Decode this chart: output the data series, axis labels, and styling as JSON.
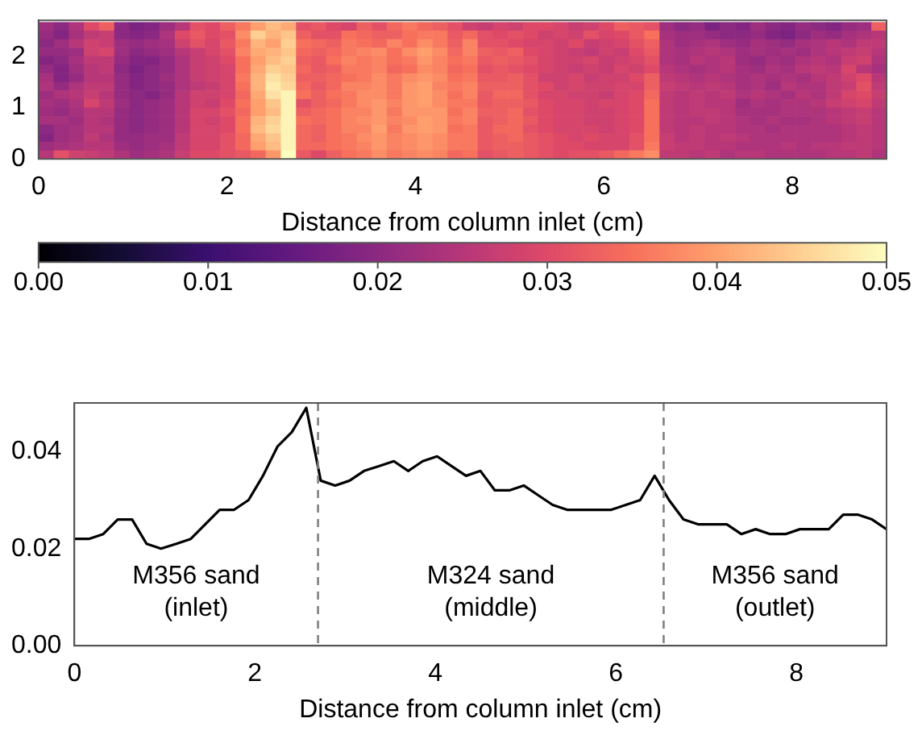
{
  "chart_data": [
    {
      "type": "heatmap",
      "xlabel": "Distance from column inlet (cm)",
      "x": [
        0.08,
        0.241,
        0.402,
        0.563,
        0.723,
        0.884,
        1.045,
        1.205,
        1.366,
        1.527,
        1.688,
        1.848,
        2.009,
        2.17,
        2.33,
        2.491,
        2.652,
        2.813,
        2.973,
        3.134,
        3.295,
        3.455,
        3.616,
        3.777,
        3.938,
        4.098,
        4.259,
        4.42,
        4.58,
        4.741,
        4.902,
        5.063,
        5.223,
        5.384,
        5.545,
        5.705,
        5.866,
        6.027,
        6.188,
        6.348,
        6.509,
        6.67,
        6.83,
        6.991,
        7.152,
        7.313,
        7.473,
        7.634,
        7.795,
        7.955,
        8.116,
        8.277,
        8.438,
        8.598,
        8.759,
        8.92
      ],
      "y": [
        2.583,
        2.417,
        2.25,
        2.083,
        1.917,
        1.75,
        1.583,
        1.417,
        1.25,
        1.083,
        0.917,
        0.75,
        0.583,
        0.417,
        0.25,
        0.083
      ],
      "cells": [
        [
          0.022,
          0.02,
          0.024,
          0.03,
          0.033,
          0.02,
          0.018,
          0.019,
          0.022,
          0.025,
          0.031,
          0.03,
          0.033,
          0.036,
          0.04,
          0.043,
          0.041,
          0.031,
          0.032,
          0.03,
          0.029,
          0.033,
          0.031,
          0.034,
          0.036,
          0.034,
          0.033,
          0.031,
          0.028,
          0.027,
          0.029,
          0.028,
          0.03,
          0.03,
          0.029,
          0.027,
          0.028,
          0.03,
          0.033,
          0.032,
          0.031,
          0.022,
          0.02,
          0.021,
          0.018,
          0.02,
          0.019,
          0.022,
          0.02,
          0.019,
          0.021,
          0.02,
          0.019,
          0.021,
          0.022,
          0.033
        ],
        [
          0.021,
          0.019,
          0.023,
          0.026,
          0.027,
          0.02,
          0.019,
          0.02,
          0.024,
          0.03,
          0.032,
          0.03,
          0.031,
          0.038,
          0.045,
          0.042,
          0.044,
          0.033,
          0.031,
          0.031,
          0.035,
          0.034,
          0.033,
          0.033,
          0.035,
          0.036,
          0.036,
          0.032,
          0.034,
          0.031,
          0.03,
          0.031,
          0.03,
          0.028,
          0.029,
          0.028,
          0.031,
          0.029,
          0.03,
          0.032,
          0.035,
          0.023,
          0.022,
          0.022,
          0.021,
          0.02,
          0.02,
          0.021,
          0.019,
          0.018,
          0.02,
          0.022,
          0.021,
          0.023,
          0.024,
          0.025
        ],
        [
          0.02,
          0.022,
          0.025,
          0.028,
          0.027,
          0.022,
          0.021,
          0.022,
          0.023,
          0.028,
          0.031,
          0.029,
          0.032,
          0.036,
          0.042,
          0.04,
          0.045,
          0.035,
          0.034,
          0.033,
          0.036,
          0.035,
          0.034,
          0.037,
          0.035,
          0.038,
          0.036,
          0.033,
          0.037,
          0.031,
          0.031,
          0.03,
          0.029,
          0.029,
          0.028,
          0.03,
          0.027,
          0.028,
          0.029,
          0.031,
          0.033,
          0.024,
          0.022,
          0.023,
          0.024,
          0.022,
          0.021,
          0.023,
          0.022,
          0.021,
          0.023,
          0.024,
          0.025,
          0.024,
          0.026,
          0.026
        ],
        [
          0.021,
          0.021,
          0.022,
          0.028,
          0.029,
          0.022,
          0.02,
          0.021,
          0.022,
          0.025,
          0.027,
          0.029,
          0.031,
          0.037,
          0.041,
          0.042,
          0.044,
          0.034,
          0.033,
          0.034,
          0.036,
          0.037,
          0.038,
          0.035,
          0.038,
          0.04,
          0.038,
          0.034,
          0.037,
          0.033,
          0.032,
          0.033,
          0.03,
          0.029,
          0.028,
          0.027,
          0.026,
          0.028,
          0.027,
          0.03,
          0.032,
          0.024,
          0.023,
          0.024,
          0.025,
          0.024,
          0.022,
          0.023,
          0.022,
          0.023,
          0.022,
          0.024,
          0.025,
          0.026,
          0.027,
          0.025
        ],
        [
          0.019,
          0.02,
          0.023,
          0.026,
          0.026,
          0.021,
          0.019,
          0.019,
          0.021,
          0.024,
          0.027,
          0.028,
          0.03,
          0.035,
          0.04,
          0.043,
          0.045,
          0.033,
          0.032,
          0.035,
          0.037,
          0.036,
          0.037,
          0.035,
          0.036,
          0.039,
          0.037,
          0.035,
          0.036,
          0.032,
          0.033,
          0.032,
          0.031,
          0.029,
          0.028,
          0.028,
          0.029,
          0.027,
          0.028,
          0.029,
          0.031,
          0.024,
          0.023,
          0.025,
          0.024,
          0.025,
          0.022,
          0.021,
          0.023,
          0.022,
          0.024,
          0.025,
          0.024,
          0.027,
          0.028,
          0.024
        ],
        [
          0.021,
          0.019,
          0.022,
          0.025,
          0.026,
          0.02,
          0.018,
          0.02,
          0.021,
          0.024,
          0.027,
          0.028,
          0.029,
          0.035,
          0.041,
          0.045,
          0.044,
          0.034,
          0.032,
          0.033,
          0.036,
          0.036,
          0.037,
          0.034,
          0.035,
          0.038,
          0.037,
          0.034,
          0.035,
          0.031,
          0.032,
          0.031,
          0.03,
          0.029,
          0.028,
          0.027,
          0.028,
          0.027,
          0.029,
          0.028,
          0.03,
          0.025,
          0.024,
          0.023,
          0.024,
          0.025,
          0.023,
          0.022,
          0.024,
          0.023,
          0.025,
          0.026,
          0.025,
          0.029,
          0.025,
          0.023
        ],
        [
          0.023,
          0.019,
          0.021,
          0.025,
          0.025,
          0.021,
          0.019,
          0.02,
          0.022,
          0.024,
          0.027,
          0.028,
          0.029,
          0.036,
          0.042,
          0.047,
          0.045,
          0.033,
          0.033,
          0.034,
          0.035,
          0.036,
          0.038,
          0.036,
          0.038,
          0.039,
          0.038,
          0.035,
          0.036,
          0.032,
          0.032,
          0.033,
          0.031,
          0.028,
          0.028,
          0.029,
          0.027,
          0.028,
          0.028,
          0.03,
          0.033,
          0.026,
          0.025,
          0.024,
          0.025,
          0.024,
          0.023,
          0.024,
          0.023,
          0.024,
          0.023,
          0.025,
          0.026,
          0.028,
          0.03,
          0.025
        ],
        [
          0.024,
          0.021,
          0.024,
          0.026,
          0.026,
          0.021,
          0.019,
          0.02,
          0.021,
          0.024,
          0.026,
          0.027,
          0.029,
          0.035,
          0.042,
          0.048,
          0.046,
          0.034,
          0.032,
          0.034,
          0.037,
          0.037,
          0.038,
          0.036,
          0.039,
          0.04,
          0.037,
          0.036,
          0.037,
          0.033,
          0.033,
          0.033,
          0.031,
          0.03,
          0.028,
          0.029,
          0.028,
          0.028,
          0.029,
          0.029,
          0.033,
          0.027,
          0.026,
          0.025,
          0.026,
          0.025,
          0.023,
          0.024,
          0.022,
          0.025,
          0.024,
          0.024,
          0.026,
          0.027,
          0.031,
          0.026
        ],
        [
          0.022,
          0.024,
          0.025,
          0.027,
          0.025,
          0.021,
          0.02,
          0.019,
          0.021,
          0.025,
          0.028,
          0.028,
          0.029,
          0.034,
          0.041,
          0.047,
          0.049,
          0.035,
          0.033,
          0.035,
          0.036,
          0.038,
          0.038,
          0.036,
          0.039,
          0.04,
          0.038,
          0.035,
          0.037,
          0.032,
          0.034,
          0.034,
          0.031,
          0.029,
          0.029,
          0.028,
          0.028,
          0.027,
          0.029,
          0.03,
          0.034,
          0.026,
          0.025,
          0.026,
          0.025,
          0.026,
          0.024,
          0.025,
          0.024,
          0.023,
          0.025,
          0.024,
          0.026,
          0.029,
          0.03,
          0.027
        ],
        [
          0.023,
          0.022,
          0.024,
          0.029,
          0.026,
          0.022,
          0.02,
          0.021,
          0.022,
          0.025,
          0.028,
          0.027,
          0.03,
          0.035,
          0.04,
          0.044,
          0.049,
          0.031,
          0.033,
          0.034,
          0.036,
          0.038,
          0.039,
          0.037,
          0.039,
          0.04,
          0.038,
          0.036,
          0.036,
          0.032,
          0.033,
          0.033,
          0.032,
          0.03,
          0.029,
          0.029,
          0.028,
          0.029,
          0.029,
          0.03,
          0.035,
          0.026,
          0.025,
          0.026,
          0.025,
          0.025,
          0.022,
          0.024,
          0.023,
          0.024,
          0.024,
          0.025,
          0.027,
          0.028,
          0.029,
          0.026
        ],
        [
          0.022,
          0.021,
          0.023,
          0.025,
          0.025,
          0.021,
          0.02,
          0.021,
          0.022,
          0.025,
          0.029,
          0.029,
          0.031,
          0.034,
          0.04,
          0.043,
          0.049,
          0.033,
          0.034,
          0.035,
          0.037,
          0.037,
          0.039,
          0.036,
          0.039,
          0.039,
          0.039,
          0.035,
          0.037,
          0.033,
          0.033,
          0.034,
          0.031,
          0.03,
          0.029,
          0.029,
          0.028,
          0.028,
          0.029,
          0.03,
          0.035,
          0.026,
          0.025,
          0.026,
          0.026,
          0.025,
          0.023,
          0.023,
          0.023,
          0.024,
          0.024,
          0.024,
          0.025,
          0.026,
          0.027,
          0.025
        ],
        [
          0.023,
          0.023,
          0.022,
          0.025,
          0.024,
          0.021,
          0.02,
          0.021,
          0.022,
          0.025,
          0.029,
          0.028,
          0.03,
          0.035,
          0.042,
          0.045,
          0.049,
          0.035,
          0.034,
          0.035,
          0.037,
          0.038,
          0.039,
          0.037,
          0.038,
          0.04,
          0.039,
          0.036,
          0.037,
          0.032,
          0.033,
          0.034,
          0.032,
          0.03,
          0.029,
          0.029,
          0.028,
          0.028,
          0.029,
          0.03,
          0.035,
          0.026,
          0.025,
          0.025,
          0.026,
          0.025,
          0.024,
          0.023,
          0.024,
          0.023,
          0.023,
          0.024,
          0.025,
          0.026,
          0.027,
          0.025
        ],
        [
          0.02,
          0.022,
          0.023,
          0.025,
          0.025,
          0.021,
          0.02,
          0.021,
          0.022,
          0.025,
          0.029,
          0.029,
          0.03,
          0.035,
          0.043,
          0.046,
          0.049,
          0.034,
          0.033,
          0.035,
          0.037,
          0.037,
          0.04,
          0.036,
          0.039,
          0.04,
          0.039,
          0.035,
          0.036,
          0.032,
          0.034,
          0.034,
          0.031,
          0.03,
          0.029,
          0.029,
          0.029,
          0.028,
          0.029,
          0.03,
          0.035,
          0.026,
          0.025,
          0.026,
          0.025,
          0.025,
          0.024,
          0.024,
          0.023,
          0.024,
          0.024,
          0.024,
          0.024,
          0.025,
          0.026,
          0.025
        ],
        [
          0.019,
          0.022,
          0.023,
          0.026,
          0.024,
          0.021,
          0.021,
          0.022,
          0.022,
          0.026,
          0.029,
          0.029,
          0.031,
          0.034,
          0.041,
          0.044,
          0.049,
          0.034,
          0.033,
          0.035,
          0.036,
          0.038,
          0.039,
          0.037,
          0.038,
          0.039,
          0.038,
          0.036,
          0.036,
          0.032,
          0.033,
          0.034,
          0.032,
          0.031,
          0.03,
          0.029,
          0.03,
          0.029,
          0.029,
          0.031,
          0.035,
          0.027,
          0.025,
          0.026,
          0.025,
          0.026,
          0.025,
          0.024,
          0.024,
          0.024,
          0.024,
          0.024,
          0.024,
          0.025,
          0.026,
          0.025
        ],
        [
          0.022,
          0.023,
          0.024,
          0.025,
          0.025,
          0.022,
          0.021,
          0.022,
          0.023,
          0.026,
          0.029,
          0.029,
          0.031,
          0.034,
          0.04,
          0.043,
          0.049,
          0.034,
          0.034,
          0.035,
          0.036,
          0.037,
          0.039,
          0.037,
          0.038,
          0.039,
          0.038,
          0.036,
          0.036,
          0.032,
          0.033,
          0.033,
          0.032,
          0.031,
          0.03,
          0.03,
          0.029,
          0.029,
          0.029,
          0.031,
          0.036,
          0.027,
          0.026,
          0.026,
          0.025,
          0.025,
          0.024,
          0.024,
          0.024,
          0.025,
          0.024,
          0.025,
          0.025,
          0.026,
          0.026,
          0.025
        ],
        [
          0.025,
          0.031,
          0.028,
          0.027,
          0.026,
          0.024,
          0.022,
          0.023,
          0.024,
          0.027,
          0.03,
          0.03,
          0.031,
          0.032,
          0.034,
          0.039,
          0.05,
          0.032,
          0.03,
          0.033,
          0.035,
          0.036,
          0.038,
          0.036,
          0.037,
          0.038,
          0.037,
          0.034,
          0.035,
          0.031,
          0.032,
          0.033,
          0.032,
          0.031,
          0.03,
          0.031,
          0.031,
          0.032,
          0.034,
          0.036,
          0.038,
          0.026,
          0.026,
          0.025,
          0.026,
          0.024,
          0.025,
          0.025,
          0.024,
          0.024,
          0.024,
          0.024,
          0.025,
          0.025,
          0.026,
          0.024
        ]
      ],
      "clim": [
        0,
        0.05
      ],
      "cticks": [
        {
          "value": 0,
          "label": "0.00"
        },
        {
          "value": 0.01,
          "label": "0.01"
        },
        {
          "value": 0.02,
          "label": "0.02"
        },
        {
          "value": 0.03,
          "label": "0.03"
        },
        {
          "value": 0.04,
          "label": "0.04"
        },
        {
          "value": 0.05,
          "label": "0.05"
        }
      ],
      "xlim": [
        0,
        9
      ],
      "xticks": [
        0,
        2,
        4,
        6,
        8
      ],
      "ylim": [
        0,
        2.7
      ],
      "yticks": [
        0,
        1,
        2
      ]
    },
    {
      "type": "line",
      "xlabel": "Distance from column inlet (cm)",
      "x": [
        0,
        0.16,
        0.32,
        0.48,
        0.64,
        0.8,
        0.96,
        1.13,
        1.29,
        1.45,
        1.61,
        1.77,
        1.93,
        2.09,
        2.25,
        2.41,
        2.57,
        2.73,
        2.89,
        3.05,
        3.21,
        3.38,
        3.54,
        3.7,
        3.86,
        4.02,
        4.18,
        4.34,
        4.5,
        4.66,
        4.82,
        4.98,
        5.14,
        5.3,
        5.46,
        5.63,
        5.79,
        5.95,
        6.11,
        6.27,
        6.43,
        6.59,
        6.75,
        6.91,
        7.07,
        7.23,
        7.39,
        7.55,
        7.71,
        7.88,
        8.04,
        8.2,
        8.36,
        8.52,
        8.68,
        8.84,
        9.0
      ],
      "series": [
        {
          "color": "#000000",
          "values": [
            0.022,
            0.022,
            0.023,
            0.026,
            0.026,
            0.021,
            0.02,
            0.021,
            0.022,
            0.025,
            0.028,
            0.028,
            0.03,
            0.035,
            0.041,
            0.044,
            0.049,
            0.034,
            0.033,
            0.034,
            0.036,
            0.037,
            0.038,
            0.036,
            0.038,
            0.039,
            0.037,
            0.035,
            0.036,
            0.032,
            0.032,
            0.033,
            0.031,
            0.029,
            0.028,
            0.028,
            0.028,
            0.028,
            0.029,
            0.03,
            0.035,
            0.03,
            0.026,
            0.025,
            0.025,
            0.025,
            0.023,
            0.024,
            0.023,
            0.023,
            0.024,
            0.024,
            0.024,
            0.027,
            0.027,
            0.026,
            0.024
          ]
        }
      ],
      "xlim": [
        0,
        9
      ],
      "xticks": [
        0,
        2,
        4,
        6,
        8
      ],
      "ylim": [
        0,
        0.05
      ],
      "yticks": [
        {
          "value": 0,
          "label": "0.00"
        },
        {
          "value": 0.02,
          "label": "0.02"
        },
        {
          "value": 0.04,
          "label": "0.04"
        }
      ],
      "ref_lines": [
        {
          "axis": "x",
          "value": 2.7,
          "color": "#808080",
          "line_style": "dashed"
        },
        {
          "axis": "x",
          "value": 6.53,
          "color": "#808080",
          "line_style": "dashed"
        }
      ],
      "annotations": [
        "M356 sand\n(inlet)",
        "M324 sand\n(middle)",
        "M356 sand\n(outlet)"
      ]
    }
  ]
}
